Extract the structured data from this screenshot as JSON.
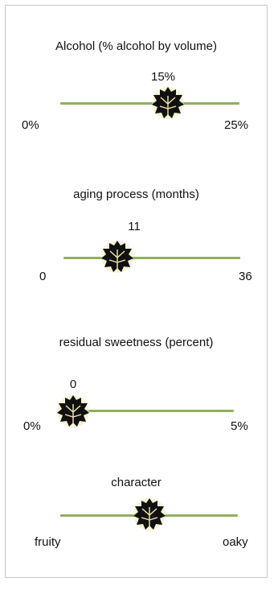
{
  "sliders": [
    {
      "title": "Alcohol (% alcohol by volume)",
      "value_label": "15%",
      "min_label": "0%",
      "max_label": "25%",
      "value": 15,
      "min": 0,
      "max": 25
    },
    {
      "title": "aging process (months)",
      "value_label": "11",
      "min_label": "0",
      "max_label": "36",
      "value": 11,
      "min": 0,
      "max": 36
    },
    {
      "title": "residual sweetness (percent)",
      "value_label": "0",
      "min_label": "0%",
      "max_label": "5%",
      "value": 0,
      "min": 0,
      "max": 5
    },
    {
      "title": "character",
      "value_label": "",
      "min_label": "fruity",
      "max_label": "oaky",
      "value": 0.5,
      "min": 0,
      "max": 1
    }
  ],
  "colors": {
    "track": "#90b05c",
    "leaf": "#111111",
    "leaf_glow": "#f3e9b0"
  },
  "icons": {
    "thumb": "grape-leaf-icon"
  }
}
